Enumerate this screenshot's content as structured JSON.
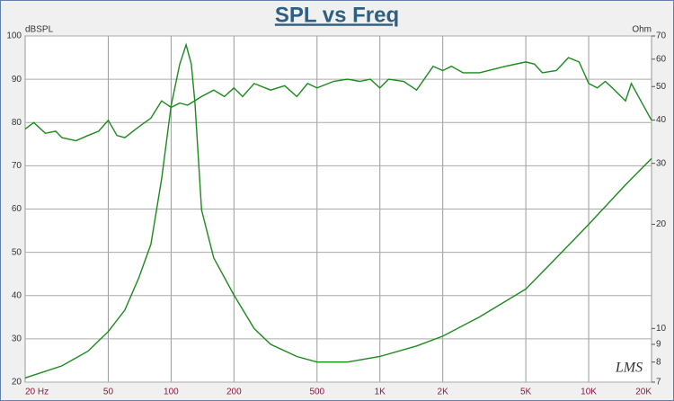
{
  "chart_data": {
    "type": "line",
    "title": "SPL vs Freq",
    "ylabel": "dBSPL",
    "y2label": "Ohm",
    "annotation": "LMS",
    "xscale": "log",
    "y2scale": "log",
    "grid": true,
    "xlim": [
      20,
      20000
    ],
    "ylim": [
      20,
      100
    ],
    "y2lim": [
      7,
      70
    ],
    "xticks": [
      {
        "value": 20,
        "label": "20  Hz"
      },
      50,
      100,
      200,
      500,
      {
        "value": 1000,
        "label": "1K"
      },
      {
        "value": 2000,
        "label": "2K"
      },
      {
        "value": 5000,
        "label": "5K"
      },
      {
        "value": 10000,
        "label": "10K"
      },
      {
        "value": 20000,
        "label": "20K"
      }
    ],
    "yticks": [
      20,
      30,
      40,
      50,
      60,
      70,
      80,
      90,
      100
    ],
    "y2ticks": [
      7,
      8,
      9,
      10,
      20,
      30,
      40,
      50,
      60,
      70
    ],
    "series": [
      {
        "color": "#1a8a1a",
        "x": [
          20,
          22,
          25,
          28,
          30,
          35,
          40,
          45,
          50,
          55,
          60,
          70,
          80,
          90,
          100,
          110,
          120,
          140,
          160,
          180,
          200,
          220,
          250,
          300,
          350,
          400,
          450,
          500,
          600,
          700,
          800,
          900,
          1000,
          1100,
          1300,
          1500,
          1800,
          2000,
          2200,
          2500,
          3000,
          4000,
          5000,
          5500,
          6000,
          7000,
          8000,
          9000,
          10000,
          11000,
          12000,
          13000,
          15000,
          16000,
          18000,
          20000
        ],
        "values": [
          78.5,
          80,
          77.5,
          78,
          76.5,
          75.8,
          77,
          78,
          80.5,
          77,
          76.5,
          79,
          81,
          85,
          83.5,
          84.5,
          84,
          86,
          87.5,
          86,
          88,
          86,
          89,
          87.5,
          88.5,
          86,
          89,
          88,
          89.5,
          90,
          89.5,
          90,
          88,
          90,
          89.5,
          87.5,
          93,
          92,
          93,
          91.5,
          91.5,
          93,
          94,
          93.5,
          91.5,
          92,
          95,
          94,
          89,
          88,
          89.5,
          88,
          85,
          89,
          84.5,
          80.5
        ]
      },
      {
        "color": "#1a8a1a",
        "axis": "y2",
        "x": [
          20,
          30,
          40,
          50,
          60,
          70,
          80,
          90,
          100,
          110,
          118,
          125,
          130,
          140,
          160,
          200,
          250,
          300,
          400,
          500,
          600,
          700,
          1000,
          1500,
          2000,
          3000,
          5000,
          7000,
          10000,
          15000,
          20000
        ],
        "values": [
          7.2,
          7.8,
          8.6,
          9.8,
          11.3,
          14,
          17.5,
          27,
          44,
          58,
          66,
          58,
          45,
          22,
          16,
          12.5,
          10,
          9,
          8.3,
          8,
          8,
          8,
          8.3,
          8.9,
          9.5,
          10.8,
          13,
          16,
          20,
          26,
          31
        ]
      }
    ]
  }
}
